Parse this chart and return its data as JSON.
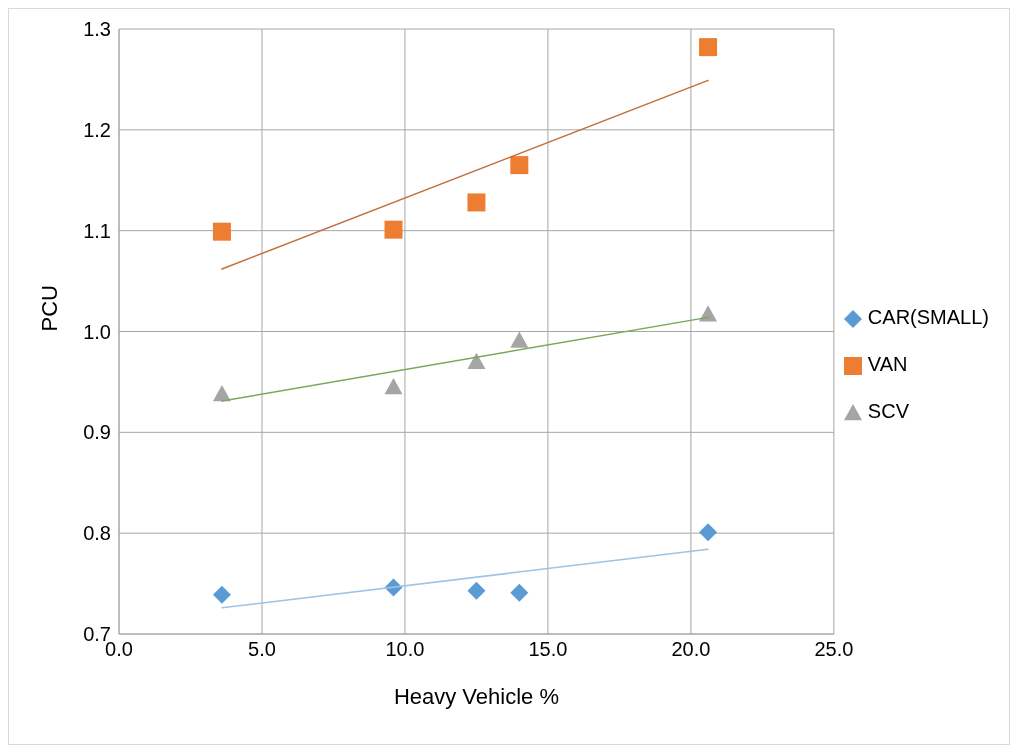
{
  "chart_data": {
    "type": "scatter",
    "xlabel": "Heavy Vehicle %",
    "ylabel": "PCU",
    "xlim": [
      0,
      25
    ],
    "xticks": [
      {
        "value": 0,
        "label": "0.0"
      },
      {
        "value": 5,
        "label": "5.0"
      },
      {
        "value": 10,
        "label": "10.0"
      },
      {
        "value": 15,
        "label": "15.0"
      },
      {
        "value": 20,
        "label": "20.0"
      },
      {
        "value": 25,
        "label": "25.0"
      }
    ],
    "ylim": [
      0.7,
      1.3
    ],
    "yticks": [
      {
        "value": 0.7,
        "label": "0.7"
      },
      {
        "value": 0.8,
        "label": "0.8"
      },
      {
        "value": 0.9,
        "label": "0.9"
      },
      {
        "value": 1.0,
        "label": "1.0"
      },
      {
        "value": 1.1,
        "label": "1.1"
      },
      {
        "value": 1.2,
        "label": "1.2"
      },
      {
        "value": 1.3,
        "label": "1.3"
      }
    ],
    "grid": true,
    "legend": "right",
    "x": [
      3.6,
      9.6,
      12.5,
      14.0,
      20.6
    ],
    "series": [
      {
        "name": "CAR(SMALL)",
        "color": "#5b9bd5",
        "marker": "diamond",
        "values": [
          0.739,
          0.746,
          0.743,
          0.741,
          0.801
        ]
      },
      {
        "name": "VAN",
        "color": "#ed7d31",
        "marker": "square",
        "values": [
          1.099,
          1.101,
          1.128,
          1.165,
          1.282
        ]
      },
      {
        "name": "SCV",
        "color": "#a5a5a5",
        "marker": "triangle",
        "values": [
          0.938,
          0.945,
          0.97,
          0.991,
          1.017
        ]
      },
      {
        "type": "line",
        "color": "#9dc3e6",
        "marker": "none",
        "values": [
          0.726,
          null,
          null,
          null,
          0.784
        ]
      },
      {
        "type": "line",
        "color": "#c0703a",
        "marker": "none",
        "values": [
          1.062,
          null,
          null,
          null,
          1.249
        ]
      },
      {
        "type": "line",
        "color": "#7aa65a",
        "marker": "none",
        "values": [
          0.931,
          null,
          null,
          null,
          1.014
        ]
      }
    ]
  }
}
